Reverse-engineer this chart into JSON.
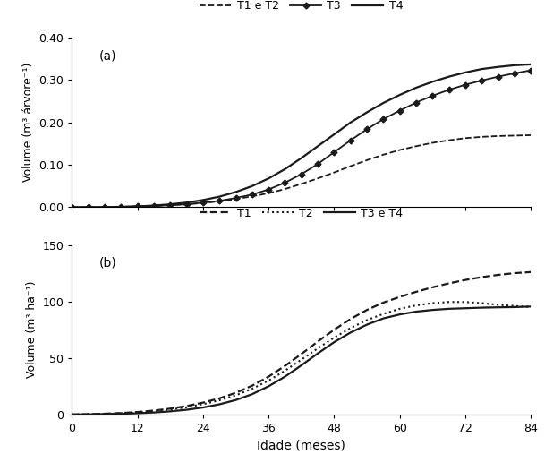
{
  "x": [
    0,
    3,
    6,
    9,
    12,
    15,
    18,
    21,
    24,
    27,
    30,
    33,
    36,
    39,
    42,
    45,
    48,
    51,
    54,
    57,
    60,
    63,
    66,
    69,
    72,
    75,
    78,
    81,
    84
  ],
  "panel_a": {
    "T1eT2": [
      0.0,
      0.0,
      0.0,
      0.001,
      0.002,
      0.003,
      0.005,
      0.007,
      0.01,
      0.014,
      0.019,
      0.026,
      0.033,
      0.043,
      0.055,
      0.068,
      0.082,
      0.097,
      0.111,
      0.124,
      0.135,
      0.144,
      0.152,
      0.158,
      0.163,
      0.166,
      0.168,
      0.169,
      0.17
    ],
    "T3": [
      0.0,
      0.0,
      0.0,
      0.001,
      0.002,
      0.003,
      0.005,
      0.007,
      0.011,
      0.015,
      0.022,
      0.03,
      0.042,
      0.058,
      0.078,
      0.102,
      0.13,
      0.158,
      0.184,
      0.208,
      0.228,
      0.247,
      0.263,
      0.277,
      0.289,
      0.299,
      0.308,
      0.316,
      0.323
    ],
    "T4": [
      0.0,
      0.0,
      0.0,
      0.001,
      0.002,
      0.004,
      0.007,
      0.011,
      0.017,
      0.025,
      0.036,
      0.05,
      0.068,
      0.09,
      0.116,
      0.144,
      0.172,
      0.2,
      0.224,
      0.246,
      0.265,
      0.282,
      0.296,
      0.308,
      0.318,
      0.326,
      0.331,
      0.335,
      0.337
    ],
    "ylabel": "Volume (m³ árvore⁻¹)",
    "ylim": [
      0,
      0.4
    ],
    "yticks": [
      0.0,
      0.1,
      0.2,
      0.3,
      0.4
    ],
    "label": "(a)",
    "legend_labels": [
      "T1 e T2",
      "T3",
      "T4"
    ]
  },
  "panel_b": {
    "T1": [
      0.0,
      0.3,
      0.7,
      1.3,
      2.2,
      3.5,
      5.2,
      7.5,
      10.5,
      14.3,
      19.2,
      25.5,
      33.5,
      43.0,
      53.5,
      64.5,
      75.0,
      84.5,
      92.5,
      99.0,
      104.0,
      108.5,
      112.5,
      116.0,
      119.0,
      121.5,
      123.5,
      125.0,
      126.0
    ],
    "T2": [
      0.0,
      0.2,
      0.5,
      1.0,
      1.8,
      2.9,
      4.4,
      6.4,
      9.1,
      12.6,
      17.0,
      22.8,
      30.0,
      38.8,
      48.5,
      58.5,
      68.0,
      76.5,
      83.5,
      89.0,
      93.5,
      96.5,
      98.5,
      99.5,
      99.5,
      98.5,
      97.0,
      96.0,
      95.0
    ],
    "T3eT4": [
      0.0,
      0.1,
      0.3,
      0.6,
      1.1,
      1.8,
      2.8,
      4.2,
      6.2,
      9.0,
      12.8,
      18.0,
      25.0,
      33.5,
      43.5,
      54.0,
      64.0,
      72.5,
      79.5,
      85.0,
      88.5,
      91.0,
      92.5,
      93.5,
      94.0,
      94.5,
      94.8,
      95.0,
      95.5
    ],
    "ylabel": "Volume (m³ ha⁻¹)",
    "ylim": [
      0,
      150
    ],
    "yticks": [
      0,
      50,
      100,
      150
    ],
    "label": "(b)",
    "legend_labels": [
      "T1",
      "T2",
      "T3 e T4"
    ]
  },
  "xlabel": "Idade (meses)",
  "xticks": [
    0,
    12,
    24,
    36,
    48,
    60,
    72,
    84
  ],
  "xlim": [
    0,
    84
  ],
  "line_color": "#1a1a1a",
  "bg_color": "#ffffff"
}
